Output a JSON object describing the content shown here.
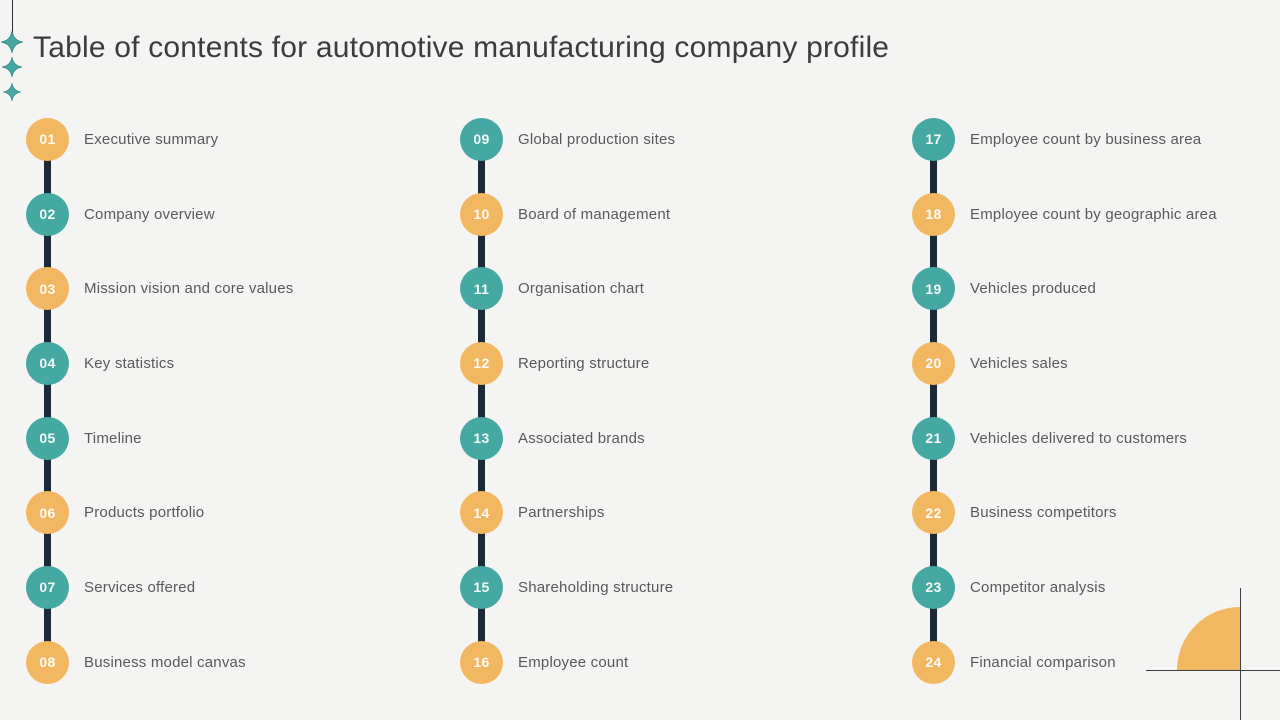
{
  "slide": {
    "title": "Table of contents for automotive manufacturing company profile"
  },
  "colors": {
    "background": "#f4f4f3",
    "teal": "#45a8a3",
    "orange": "#f2b861",
    "connector": "#1b2a36",
    "title_text": "#3c3c3c",
    "item_text": "#595959",
    "corner_line": "#3a3f44"
  },
  "decorations": {
    "top_left": "vertical-line-with-three-sparkle-icons",
    "bottom_right": "orange-quarter-circle-with-crosshair-lines"
  },
  "columns": [
    {
      "items": [
        {
          "num": "01",
          "label": "Executive summary",
          "color": "orange"
        },
        {
          "num": "02",
          "label": "Company overview",
          "color": "teal"
        },
        {
          "num": "03",
          "label": "Mission vision and core values",
          "color": "orange"
        },
        {
          "num": "04",
          "label": "Key statistics",
          "color": "teal"
        },
        {
          "num": "05",
          "label": "Timeline",
          "color": "teal"
        },
        {
          "num": "06",
          "label": "Products portfolio",
          "color": "orange"
        },
        {
          "num": "07",
          "label": "Services offered",
          "color": "teal"
        },
        {
          "num": "08",
          "label": "Business model canvas",
          "color": "orange"
        }
      ]
    },
    {
      "items": [
        {
          "num": "09",
          "label": "Global production sites",
          "color": "teal"
        },
        {
          "num": "10",
          "label": "Board of management",
          "color": "orange"
        },
        {
          "num": "11",
          "label": "Organisation chart",
          "color": "teal"
        },
        {
          "num": "12",
          "label": "Reporting structure",
          "color": "orange"
        },
        {
          "num": "13",
          "label": "Associated brands",
          "color": "teal"
        },
        {
          "num": "14",
          "label": "Partnerships",
          "color": "orange"
        },
        {
          "num": "15",
          "label": "Shareholding structure",
          "color": "teal"
        },
        {
          "num": "16",
          "label": "Employee count",
          "color": "orange"
        }
      ]
    },
    {
      "items": [
        {
          "num": "17",
          "label": "Employee count by business area",
          "color": "teal"
        },
        {
          "num": "18",
          "label": "Employee count by geographic area",
          "color": "orange"
        },
        {
          "num": "19",
          "label": "Vehicles produced",
          "color": "teal"
        },
        {
          "num": "20",
          "label": "Vehicles sales",
          "color": "orange"
        },
        {
          "num": "21",
          "label": "Vehicles delivered to customers",
          "color": "teal"
        },
        {
          "num": "22",
          "label": "Business competitors",
          "color": "orange"
        },
        {
          "num": "23",
          "label": "Competitor analysis",
          "color": "teal"
        },
        {
          "num": "24",
          "label": "Financial comparison",
          "color": "orange"
        }
      ]
    }
  ],
  "layout": {
    "column_lefts": [
      26,
      460,
      912
    ]
  }
}
